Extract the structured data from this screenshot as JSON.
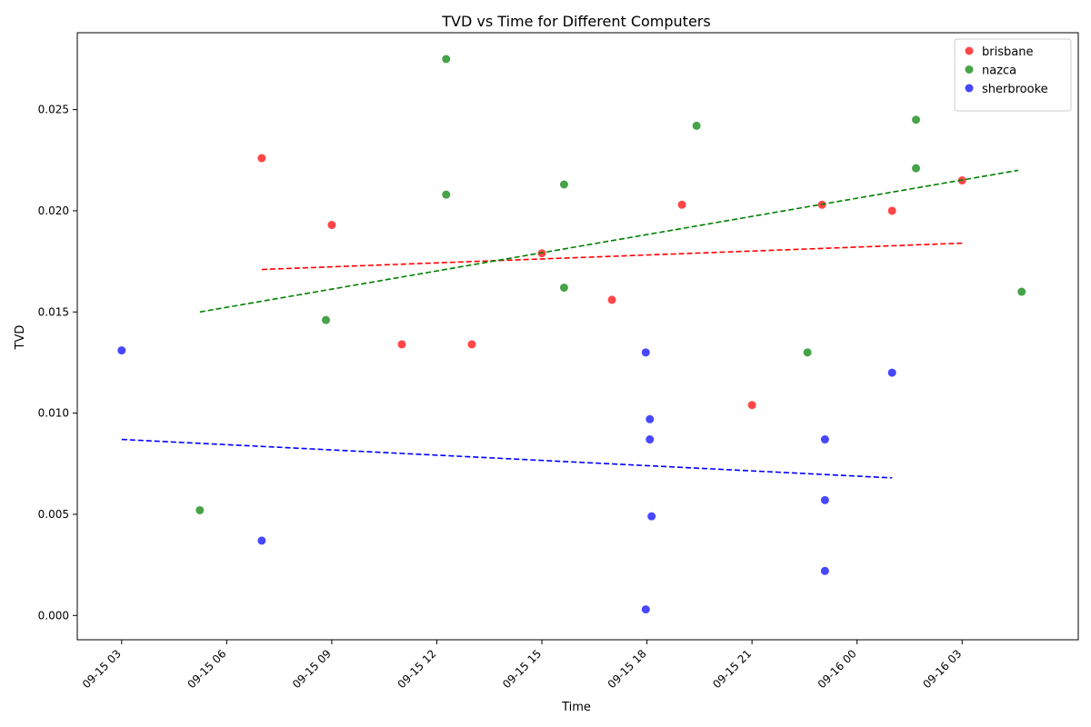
{
  "chart_data": {
    "type": "scatter",
    "title": "TVD vs Time for Different Computers",
    "xlabel": "Time",
    "ylabel": "TVD",
    "x_axis": "datetime",
    "xlim": [
      "2025-09-15T01:44",
      "2025-09-16T06:19"
    ],
    "ylim": [
      -0.0012,
      0.0288
    ],
    "x_ticks": [
      {
        "value": "2025-09-15T03:00",
        "label": "09-15 03"
      },
      {
        "value": "2025-09-15T06:00",
        "label": "09-15 06"
      },
      {
        "value": "2025-09-15T09:00",
        "label": "09-15 09"
      },
      {
        "value": "2025-09-15T12:00",
        "label": "09-15 12"
      },
      {
        "value": "2025-09-15T15:00",
        "label": "09-15 15"
      },
      {
        "value": "2025-09-15T18:00",
        "label": "09-15 18"
      },
      {
        "value": "2025-09-15T21:00",
        "label": "09-15 21"
      },
      {
        "value": "2025-09-16T00:00",
        "label": "09-16 00"
      },
      {
        "value": "2025-09-16T03:00",
        "label": "09-16 03"
      }
    ],
    "y_ticks": [
      {
        "value": 0.0,
        "label": "0.000"
      },
      {
        "value": 0.005,
        "label": "0.005"
      },
      {
        "value": 0.01,
        "label": "0.010"
      },
      {
        "value": 0.015,
        "label": "0.015"
      },
      {
        "value": 0.02,
        "label": "0.020"
      },
      {
        "value": 0.025,
        "label": "0.025"
      }
    ],
    "grid": false,
    "legend_position": "top-right",
    "series": [
      {
        "name": "brisbane",
        "color": "#ff0000",
        "points": [
          {
            "x": "2025-09-15T07:00",
            "y": 0.0226
          },
          {
            "x": "2025-09-15T09:00",
            "y": 0.0193
          },
          {
            "x": "2025-09-15T11:00",
            "y": 0.0134
          },
          {
            "x": "2025-09-15T13:00",
            "y": 0.0134
          },
          {
            "x": "2025-09-15T15:00",
            "y": 0.0179
          },
          {
            "x": "2025-09-15T17:00",
            "y": 0.0156
          },
          {
            "x": "2025-09-15T19:00",
            "y": 0.0203
          },
          {
            "x": "2025-09-15T21:00",
            "y": 0.0104
          },
          {
            "x": "2025-09-15T23:00",
            "y": 0.0203
          },
          {
            "x": "2025-09-16T01:00",
            "y": 0.02
          },
          {
            "x": "2025-09-16T03:00",
            "y": 0.0215
          }
        ],
        "trend": [
          {
            "x": "2025-09-15T07:00",
            "y": 0.0171
          },
          {
            "x": "2025-09-16T03:00",
            "y": 0.0184
          }
        ]
      },
      {
        "name": "nazca",
        "color": "#008000",
        "points": [
          {
            "x": "2025-09-15T05:14",
            "y": 0.0052
          },
          {
            "x": "2025-09-15T08:50",
            "y": 0.0146
          },
          {
            "x": "2025-09-15T12:16",
            "y": 0.0275
          },
          {
            "x": "2025-09-15T12:16",
            "y": 0.0208
          },
          {
            "x": "2025-09-15T15:38",
            "y": 0.0213
          },
          {
            "x": "2025-09-15T15:38",
            "y": 0.0162
          },
          {
            "x": "2025-09-15T19:25",
            "y": 0.0242
          },
          {
            "x": "2025-09-15T22:35",
            "y": 0.013
          },
          {
            "x": "2025-09-16T01:41",
            "y": 0.0245
          },
          {
            "x": "2025-09-16T01:41",
            "y": 0.0221
          },
          {
            "x": "2025-09-16T04:42",
            "y": 0.016
          }
        ],
        "trend": [
          {
            "x": "2025-09-15T05:14",
            "y": 0.015
          },
          {
            "x": "2025-09-16T04:36",
            "y": 0.022
          }
        ]
      },
      {
        "name": "sherbrooke",
        "color": "#0000ff",
        "points": [
          {
            "x": "2025-09-15T03:00",
            "y": 0.0131
          },
          {
            "x": "2025-09-15T07:00",
            "y": 0.0037
          },
          {
            "x": "2025-09-15T17:58",
            "y": 0.013
          },
          {
            "x": "2025-09-15T18:05",
            "y": 0.0097
          },
          {
            "x": "2025-09-15T18:05",
            "y": 0.0087
          },
          {
            "x": "2025-09-15T18:08",
            "y": 0.0049
          },
          {
            "x": "2025-09-15T17:58",
            "y": 0.0003
          },
          {
            "x": "2025-09-15T23:05",
            "y": 0.0087
          },
          {
            "x": "2025-09-15T23:05",
            "y": 0.0057
          },
          {
            "x": "2025-09-15T23:05",
            "y": 0.0022
          },
          {
            "x": "2025-09-16T01:00",
            "y": 0.012
          }
        ],
        "trend": [
          {
            "x": "2025-09-15T03:00",
            "y": 0.0087
          },
          {
            "x": "2025-09-16T01:00",
            "y": 0.0068
          }
        ]
      }
    ]
  }
}
